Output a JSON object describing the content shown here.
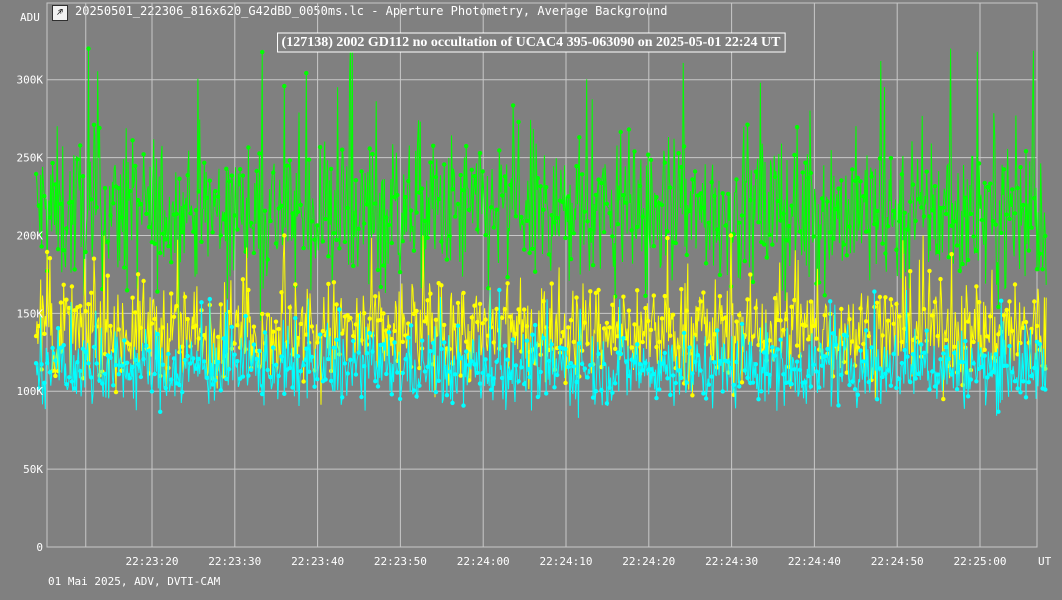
{
  "window": {
    "title": "20250501_222306_816x620_G42dBD_0050ms.lc - Aperture Photometry, Average Background"
  },
  "footer": {
    "text": "01 Mai 2025, ADV, DVTI-CAM"
  },
  "colors": {
    "background": "#808080",
    "grid": "#c8c8c8",
    "text": "#ffffff",
    "series": [
      "#00ff00",
      "#ffff00",
      "#00ffff"
    ]
  },
  "chart_data": {
    "type": "line",
    "title": "(127138) 2002 GD112 no occultation of UCAC4 395-063090 on 2025-05-01  22:24 UT",
    "ylabel": "ADU",
    "xlabel": "UT",
    "ylim": [
      0,
      300000
    ],
    "y_ticks": [
      {
        "label": "0",
        "value": 0
      },
      {
        "label": "50K",
        "value": 50000
      },
      {
        "label": "100K",
        "value": 100000
      },
      {
        "label": "150K",
        "value": 150000
      },
      {
        "label": "200K",
        "value": 200000
      },
      {
        "label": "250K",
        "value": 250000
      },
      {
        "label": "300K",
        "value": 300000
      }
    ],
    "x_range": [
      "22:23:10",
      "22:25:10"
    ],
    "x_ticks": [
      "22:23:20",
      "22:23:30",
      "22:23:40",
      "22:23:50",
      "22:24:00",
      "22:24:10",
      "22:24:20",
      "22:24:30",
      "22:24:40",
      "22:24:50",
      "22:25:00"
    ],
    "grid": true,
    "series": [
      {
        "color": "#00ff00",
        "mean": 215000,
        "noise": 24000,
        "min": 130000,
        "max": 320000
      },
      {
        "color": "#ffff00",
        "mean": 138000,
        "noise": 16000,
        "min": 83000,
        "max": 200000
      },
      {
        "color": "#00ffff",
        "mean": 115000,
        "noise": 12000,
        "min": 72000,
        "max": 165000
      }
    ]
  }
}
